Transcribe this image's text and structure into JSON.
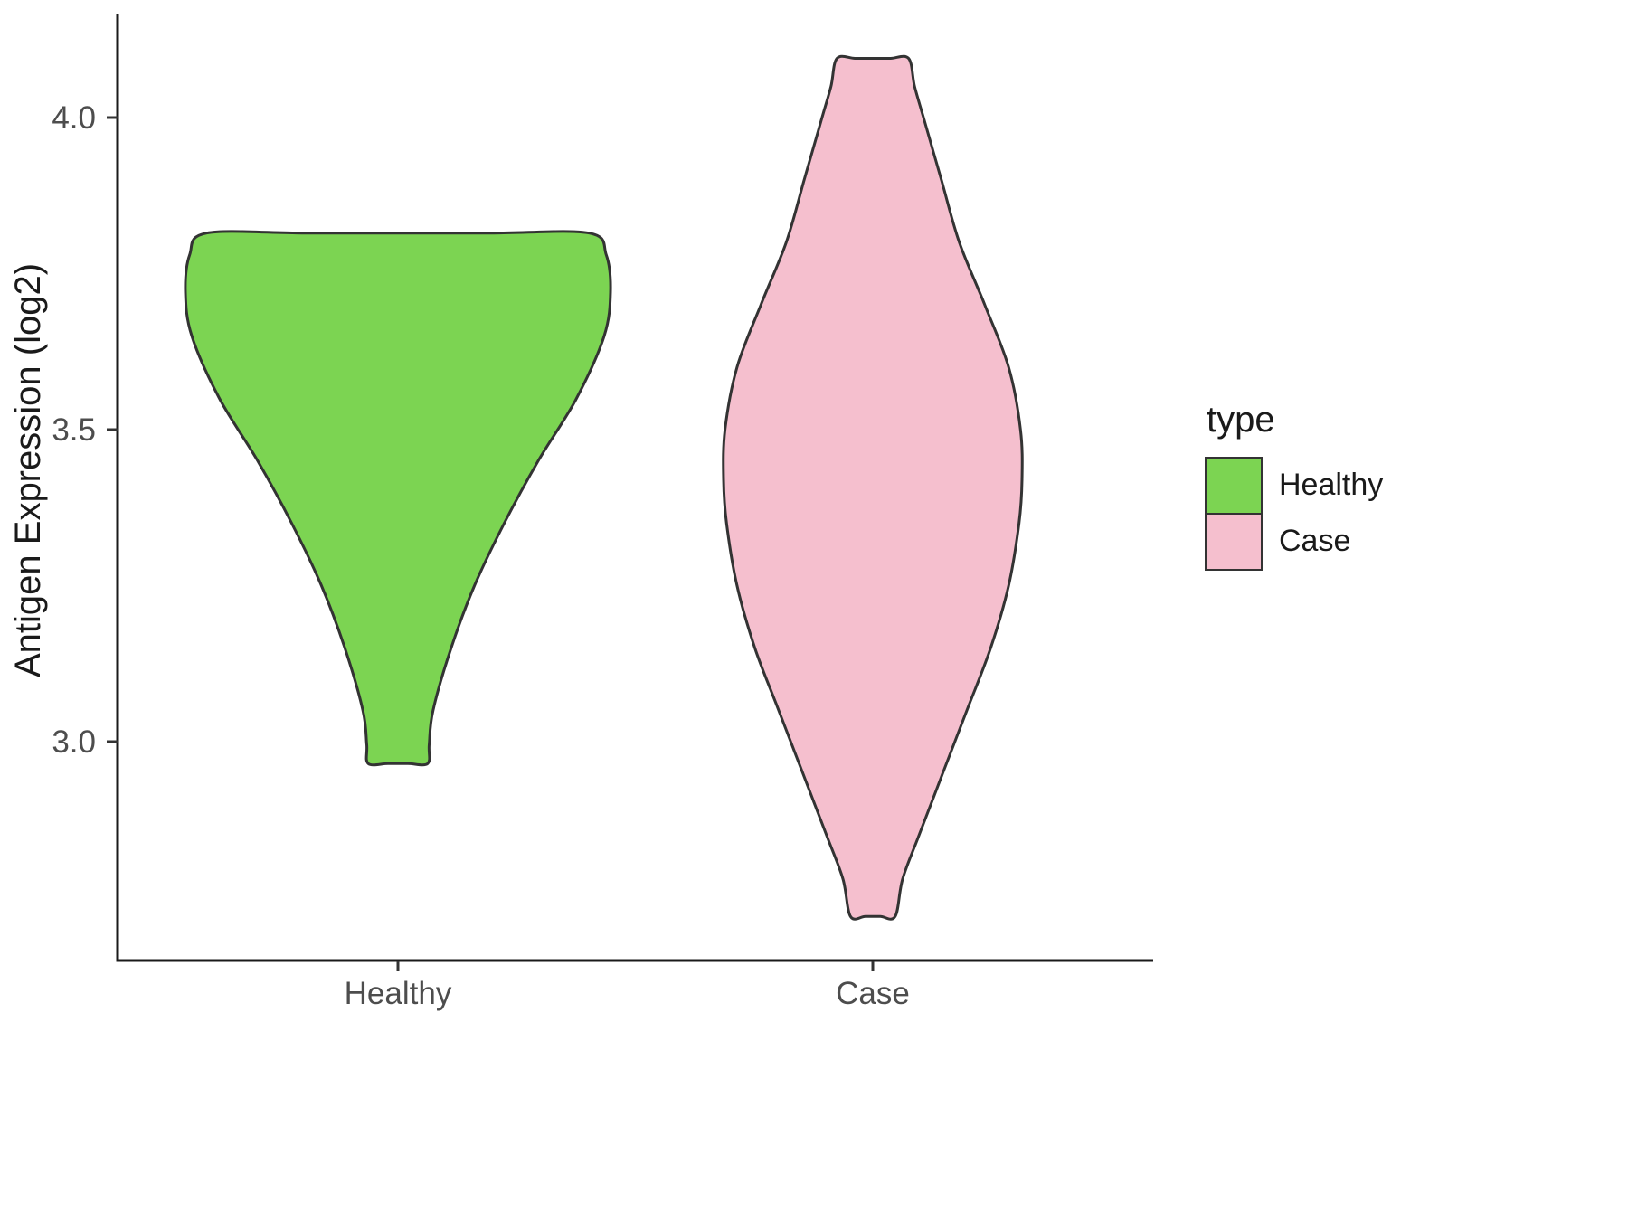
{
  "chart_data": {
    "type": "violin",
    "title": "",
    "xlabel": "",
    "ylabel": "Antigen Expression (log2)",
    "categories": [
      "Healthy",
      "Case"
    ],
    "yticks": [
      "4.0",
      "3.5",
      "3.0"
    ],
    "ytick_values": [
      4.0,
      3.5,
      3.0
    ],
    "ylim": [
      2.6,
      4.2
    ],
    "grid": "off",
    "legend": {
      "title": "type",
      "position": "right",
      "entries": [
        {
          "label": "Healthy",
          "color": "#7cd452"
        },
        {
          "label": "Case",
          "color": "#f5bfce"
        }
      ]
    },
    "series": [
      {
        "name": "Healthy",
        "fill": "#7cd452",
        "outline": "#333333",
        "y_range": [
          2.965,
          3.815
        ],
        "density_profile": [
          [
            3.815,
            0.9
          ],
          [
            3.78,
            0.98
          ],
          [
            3.72,
            1.0
          ],
          [
            3.65,
            0.97
          ],
          [
            3.55,
            0.84
          ],
          [
            3.45,
            0.66
          ],
          [
            3.35,
            0.5
          ],
          [
            3.25,
            0.36
          ],
          [
            3.15,
            0.25
          ],
          [
            3.05,
            0.165
          ],
          [
            2.995,
            0.147
          ],
          [
            2.965,
            0.14
          ]
        ]
      },
      {
        "name": "Case",
        "fill": "#f5bfce",
        "outline": "#333333",
        "y_range": [
          2.72,
          4.095
        ],
        "density_profile": [
          [
            4.095,
            0.24
          ],
          [
            4.05,
            0.28
          ],
          [
            4.0,
            0.34
          ],
          [
            3.9,
            0.46
          ],
          [
            3.8,
            0.58
          ],
          [
            3.7,
            0.75
          ],
          [
            3.6,
            0.91
          ],
          [
            3.5,
            0.99
          ],
          [
            3.42,
            1.0
          ],
          [
            3.35,
            0.98
          ],
          [
            3.25,
            0.91
          ],
          [
            3.15,
            0.79
          ],
          [
            3.05,
            0.63
          ],
          [
            2.95,
            0.47
          ],
          [
            2.85,
            0.31
          ],
          [
            2.78,
            0.2
          ],
          [
            2.72,
            0.15
          ]
        ]
      }
    ]
  }
}
